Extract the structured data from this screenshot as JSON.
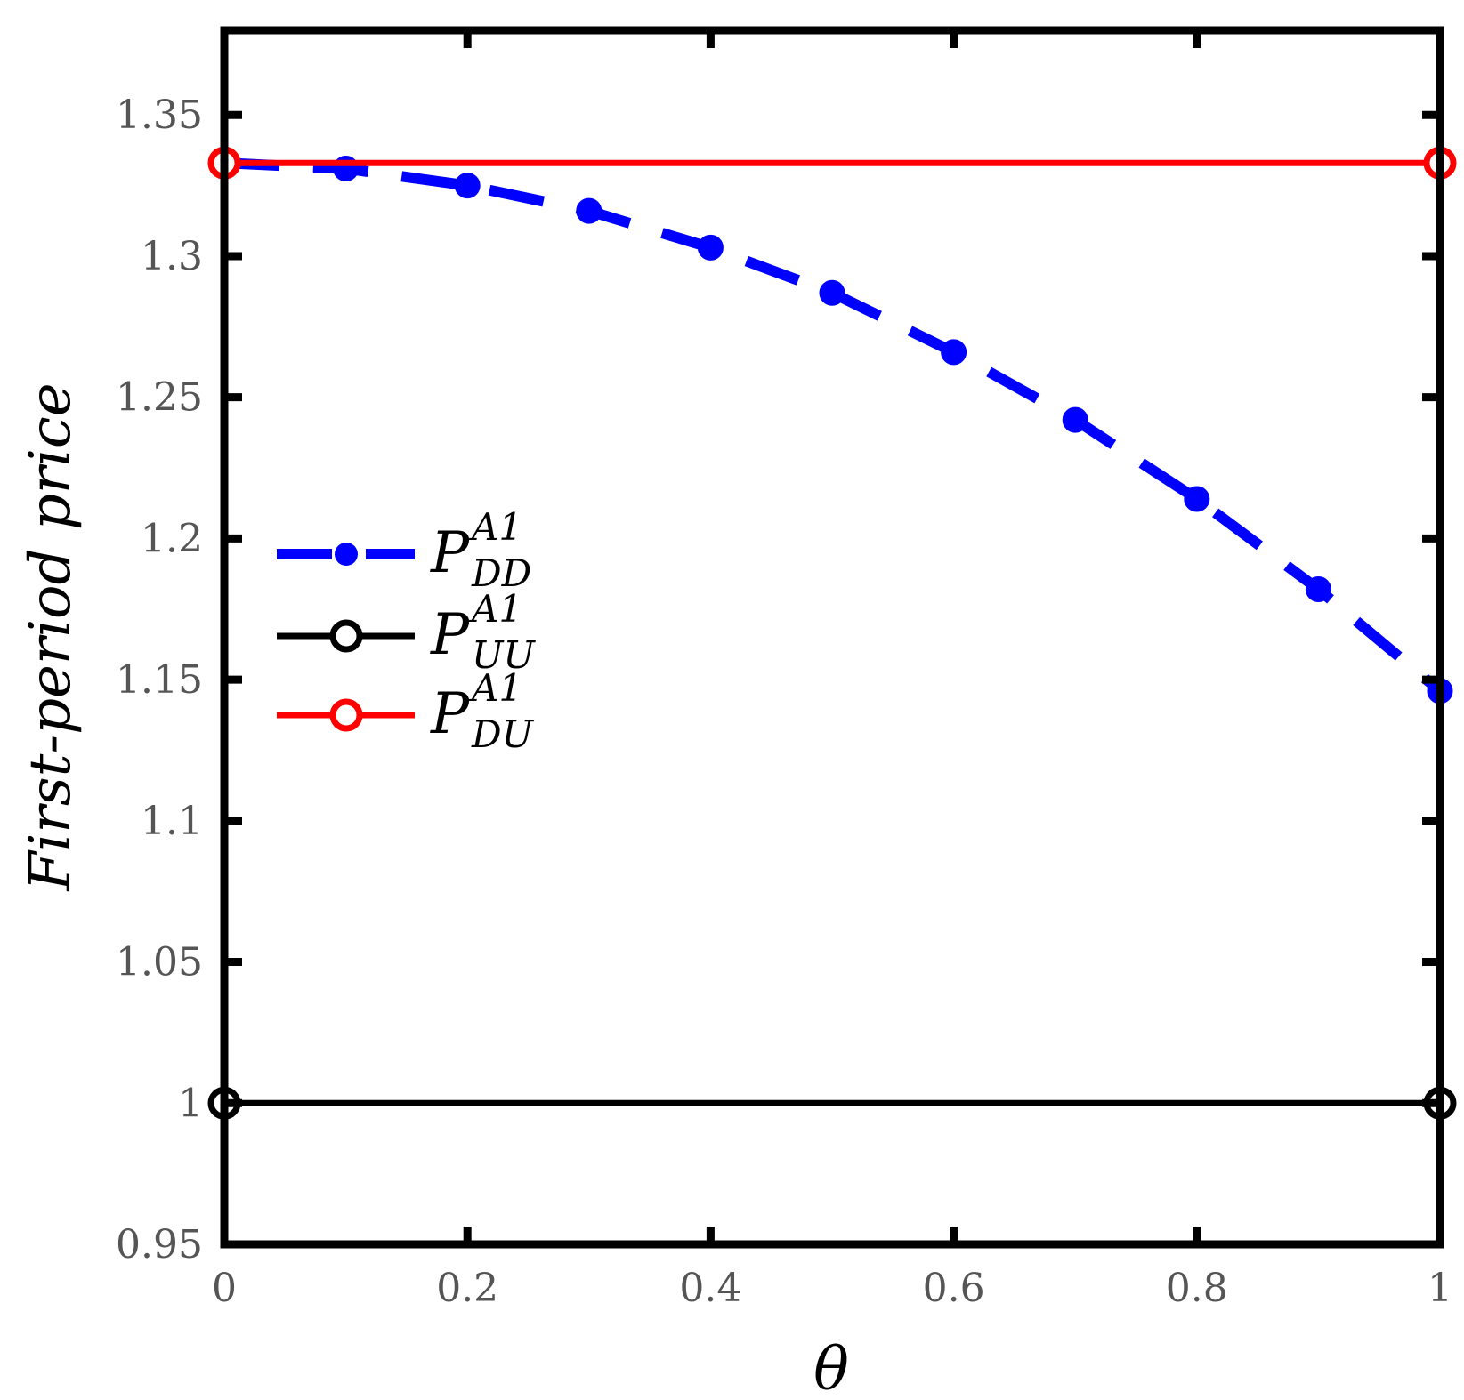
{
  "chart_data": {
    "type": "line",
    "xlabel": "θ",
    "ylabel": "First-period price",
    "xlim": [
      0,
      1
    ],
    "ylim": [
      0.95,
      1.38
    ],
    "x_ticks": [
      0,
      0.2,
      0.4,
      0.6,
      0.8,
      1
    ],
    "x_tick_labels": [
      "0",
      "0.2",
      "0.4",
      "0.6",
      "0.8",
      "1"
    ],
    "y_ticks": [
      0.95,
      1.0,
      1.05,
      1.1,
      1.15,
      1.2,
      1.25,
      1.3,
      1.35
    ],
    "y_tick_labels": [
      "0.95",
      "1",
      "1.05",
      "1.1",
      "1.15",
      "1.2",
      "1.25",
      "1.3",
      "1.35"
    ],
    "grid": false,
    "legend_position": "center-left",
    "series": [
      {
        "legend": {
          "main": "P",
          "sup": "A1",
          "sub": "DD"
        },
        "color": "#0000ff",
        "line_style": "dashed",
        "marker": "filled-circle",
        "x": [
          0,
          0.1,
          0.2,
          0.3,
          0.4,
          0.5,
          0.6,
          0.7,
          0.8,
          0.9,
          1.0
        ],
        "y": [
          1.333,
          1.331,
          1.325,
          1.316,
          1.303,
          1.287,
          1.266,
          1.242,
          1.214,
          1.182,
          1.146
        ]
      },
      {
        "legend": {
          "main": "P",
          "sup": "A1",
          "sub": "UU"
        },
        "color": "#000000",
        "line_style": "solid",
        "marker": "open-circle",
        "x": [
          0,
          1.0
        ],
        "y": [
          1.0,
          1.0
        ]
      },
      {
        "legend": {
          "main": "P",
          "sup": "A1",
          "sub": "DU"
        },
        "color": "#ff0000",
        "line_style": "solid",
        "marker": "open-circle",
        "x": [
          0,
          1.0
        ],
        "y": [
          1.333,
          1.333
        ]
      }
    ]
  }
}
